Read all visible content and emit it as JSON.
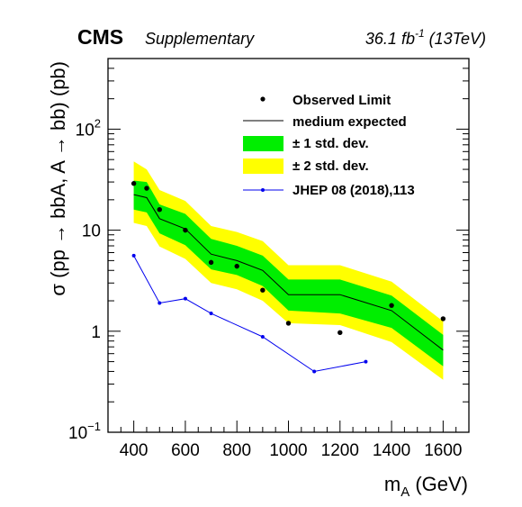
{
  "header": {
    "experiment": "CMS",
    "tag": "Supplementary",
    "lumi_main": "36.1 fb",
    "lumi_sup": "-1",
    "lumi_energy": " (13TeV)"
  },
  "chart_data": {
    "type": "line",
    "xlabel": "m",
    "xlabel_sub": "A",
    "xlabel_unit": " (GeV)",
    "ylabel": "σ (pp → bbA, A → bb) (pb)",
    "y_scale": "log",
    "xlim": [
      300,
      1700
    ],
    "ylim": [
      0.1,
      500
    ],
    "x_ticks": [
      400,
      600,
      800,
      1000,
      1200,
      1400,
      1600
    ],
    "y_ticks": [
      {
        "value": 0.1,
        "base": "10",
        "exp": "−1"
      },
      {
        "value": 1,
        "base": "1",
        "exp": ""
      },
      {
        "value": 10,
        "base": "10",
        "exp": ""
      },
      {
        "value": 100,
        "base": "10",
        "exp": "2"
      }
    ],
    "legend_position": "top-right",
    "legend": [
      "Observed Limit",
      "medium expected",
      "± 1 std. dev.",
      "± 2 std. dev.",
      "JHEP 08 (2018),113"
    ],
    "colors": {
      "observed": "#000000",
      "expected": "#000000",
      "band1": "#00ee00",
      "band2": "#ffff00",
      "jhep": "#0000ee"
    },
    "x": [
      400,
      450,
      500,
      600,
      700,
      800,
      900,
      1000,
      1200,
      1400,
      1600
    ],
    "series": [
      {
        "name": "Observed Limit",
        "x": [
          400,
          450,
          500,
          600,
          700,
          800,
          900,
          1000,
          1200,
          1400,
          1600
        ],
        "values": [
          29,
          26,
          16,
          10,
          4.8,
          4.4,
          2.55,
          1.2,
          0.97,
          1.8,
          1.33
        ]
      },
      {
        "name": "medium expected",
        "values": [
          22.5,
          21,
          13,
          10.3,
          5.8,
          5.0,
          4.0,
          2.3,
          2.3,
          1.6,
          0.65
        ]
      },
      {
        "name": "± 1 std. dev.",
        "low": [
          16,
          15,
          9.3,
          7.1,
          4.1,
          3.6,
          2.8,
          1.6,
          1.5,
          1.08,
          0.45
        ],
        "high": [
          31,
          30,
          18,
          14.5,
          8.2,
          7.0,
          5.6,
          3.25,
          3.25,
          2.25,
          0.92
        ]
      },
      {
        "name": "± 2 std. dev.",
        "low": [
          11.8,
          11,
          6.9,
          5.2,
          3.0,
          2.6,
          2.0,
          1.2,
          1.15,
          0.78,
          0.33
        ],
        "high": [
          48,
          40,
          25,
          19.5,
          11,
          9.6,
          7.8,
          4.5,
          4.5,
          3.1,
          1.25
        ]
      },
      {
        "name": "JHEP 08 (2018),113",
        "x": [
          400,
          500,
          600,
          700,
          900,
          1100,
          1300
        ],
        "values": [
          5.6,
          1.9,
          2.1,
          1.5,
          0.88,
          0.4,
          0.5
        ]
      }
    ]
  }
}
